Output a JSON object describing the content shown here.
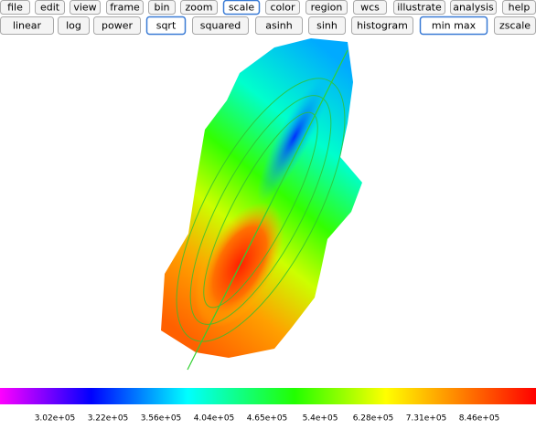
{
  "menu": [
    "file",
    "edit",
    "view",
    "frame",
    "bin",
    "zoom",
    "scale",
    "color",
    "region",
    "wcs",
    "illustrate",
    "analysis",
    "help"
  ],
  "scale_buttons": [
    "linear",
    "log",
    "power",
    "sqrt",
    "squared",
    "asinh",
    "sinh",
    "histogram",
    "min max",
    "zscale"
  ],
  "colorbar": {
    "labels": [
      "3.02e+05",
      "3.22e+05",
      "3.56e+05",
      "4.04e+05",
      "4.65e+05",
      "5.4e+05",
      "6.28e+05",
      "7.31e+05",
      "8.46e+05"
    ]
  }
}
